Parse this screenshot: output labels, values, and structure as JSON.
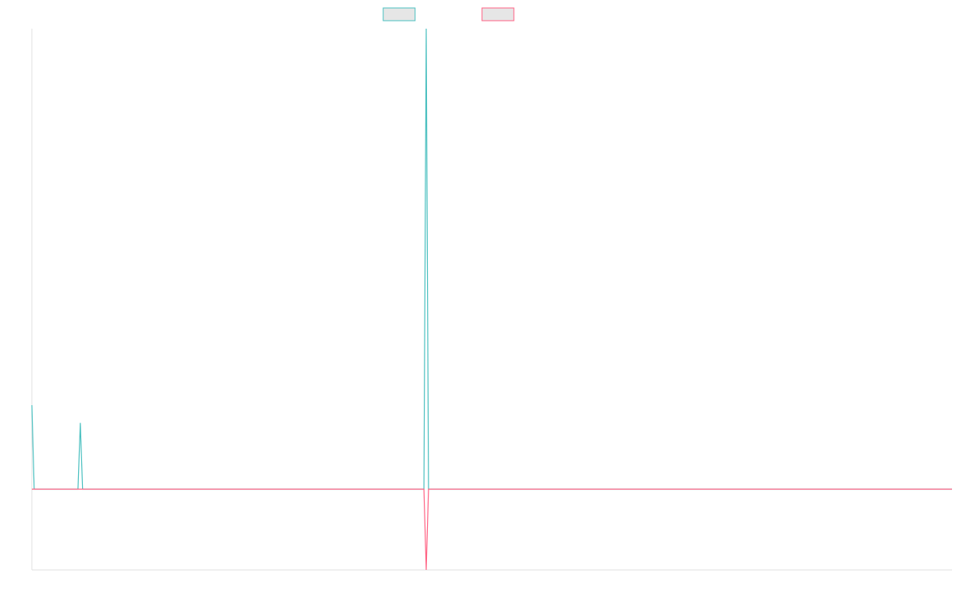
{
  "chart_data": {
    "type": "line",
    "title": "",
    "xlabel": "",
    "ylabel": "",
    "x_count": 400,
    "ylim": [
      -1,
      5.7
    ],
    "grid": false,
    "legend_position": "top",
    "series": [
      {
        "name": "",
        "color": "#4bc0c0",
        "points": [
          [
            0,
            1.04
          ],
          [
            1,
            0
          ],
          [
            20,
            0
          ],
          [
            21,
            0.82
          ],
          [
            22,
            0
          ],
          [
            170,
            0
          ],
          [
            171,
            5.7
          ],
          [
            172,
            0
          ],
          [
            399,
            0
          ]
        ]
      },
      {
        "name": "",
        "color": "#ff6384",
        "points": [
          [
            0,
            0
          ],
          [
            170,
            0
          ],
          [
            171,
            -1.0
          ],
          [
            172,
            0
          ],
          [
            399,
            0
          ]
        ]
      }
    ]
  }
}
